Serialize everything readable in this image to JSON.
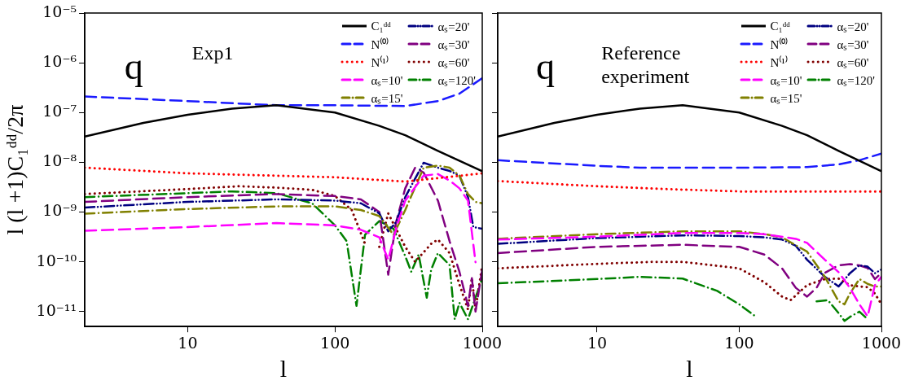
{
  "chart_data": [
    {
      "type": "line",
      "xlabel": "l",
      "ylabel": "l (l +1)C₁ᵈᵈ/2π",
      "annotations": [
        "q",
        "Exp1"
      ],
      "log": "xy",
      "legend": "top right",
      "marker": "none",
      "xlim": [
        2,
        1000
      ],
      "xticks": [
        10,
        100,
        1000
      ],
      "ylim": [
        5e-12,
        1e-05
      ],
      "yticks": [
        {
          "value": 1e-05,
          "label": "10⁻⁵"
        },
        {
          "value": 1e-06,
          "label": "10⁻⁶"
        },
        {
          "value": 1e-07,
          "label": "10⁻⁷"
        },
        {
          "value": 1e-08,
          "label": "10⁻⁸"
        },
        {
          "value": 1e-09,
          "label": "10⁻⁹"
        },
        {
          "value": 1e-10,
          "label": "10⁻¹⁰"
        },
        {
          "value": 1e-11,
          "label": "10⁻¹¹"
        }
      ],
      "series": [
        {
          "name": "C₁ᵈᵈ",
          "color": "#000000",
          "line_style": "solid",
          "x": [
            2,
            5,
            10,
            20,
            40,
            100,
            200,
            300,
            500,
            1000
          ],
          "values": [
            3.3e-08,
            6.2e-08,
            9e-08,
            1.2e-07,
            1.4e-07,
            1e-07,
            5.4e-08,
            3.5e-08,
            1.7e-08,
            6.6e-09
          ]
        },
        {
          "name": "N⁽⁰⁾",
          "color": "#1a1aff",
          "line_style": "dashed",
          "x": [
            2,
            10,
            40,
            100,
            300,
            500,
            700,
            1000
          ],
          "values": [
            2.1e-07,
            1.7e-07,
            1.4e-07,
            1.4e-07,
            1.35e-07,
            1.7e-07,
            2.4e-07,
            4.9e-07
          ]
        },
        {
          "name": "N⁽¹⁾",
          "color": "#ff0000",
          "line_style": "dotted",
          "x": [
            2,
            10,
            100,
            300,
            1000
          ],
          "values": [
            7.8e-09,
            6e-09,
            5e-09,
            4.1e-09,
            6e-09
          ]
        },
        {
          "name": "αₛ=10'",
          "color": "#ff00ff",
          "line_style": "dashed",
          "x": [
            2,
            10,
            40,
            100,
            150,
            200,
            230,
            260,
            300,
            400,
            500,
            600,
            700,
            800,
            900
          ],
          "values": [
            4.2e-10,
            5e-10,
            6e-10,
            5.4e-10,
            4.4e-10,
            3.1e-10,
            1.1e-10,
            4.6e-10,
            1.7e-09,
            5.4e-09,
            5.8e-09,
            4.3e-09,
            3e-09,
            1.7e-09,
            9.8e-11
          ]
        },
        {
          "name": "αₛ=15'",
          "color": "#808000",
          "line_style": "dashdot",
          "x": [
            2,
            10,
            40,
            100,
            150,
            200,
            250,
            300,
            400,
            500,
            600,
            700,
            800,
            900,
            1000
          ],
          "values": [
            9.3e-10,
            1.15e-09,
            1.3e-09,
            1.3e-09,
            1.1e-09,
            8.3e-10,
            3.5e-10,
            1.1e-09,
            7.8e-09,
            8.6e-09,
            7.8e-09,
            5.4e-09,
            2.3e-09,
            1.6e-09,
            1.5e-09
          ]
        },
        {
          "name": "αₛ=20'",
          "color": "#000080",
          "line_style": "dashdotdot",
          "x": [
            2,
            10,
            40,
            100,
            150,
            200,
            230,
            260,
            300,
            400,
            500,
            600,
            700,
            800,
            870,
            1000
          ],
          "values": [
            1.23e-09,
            1.6e-09,
            1.8e-09,
            1.7e-09,
            1.5e-09,
            9.4e-10,
            4.1e-10,
            6.3e-10,
            2e-09,
            9.8e-09,
            7.8e-09,
            6.7e-09,
            5.4e-09,
            2e-09,
            5e-10,
            4.6e-10
          ]
        },
        {
          "name": "αₛ=30'",
          "color": "#800080",
          "line_style": "dashed",
          "x": [
            2,
            10,
            40,
            100,
            150,
            200,
            230,
            260,
            300,
            350,
            400,
            500,
            600,
            700,
            800,
            850,
            900,
            1000
          ],
          "values": [
            1.6e-09,
            2e-09,
            2.3e-09,
            2.1e-09,
            1.8e-09,
            1e-09,
            5.5e-11,
            6.3e-10,
            3e-09,
            7.8e-09,
            6.2e-09,
            1.7e-09,
            2.6e-10,
            6.3e-11,
            1.3e-11,
            4.7e-11,
            1e-11,
            7e-11
          ]
        },
        {
          "name": "αₛ=60'",
          "color": "#800000",
          "line_style": "dotted",
          "x": [
            2,
            10,
            22,
            40,
            70,
            100,
            130,
            160,
            180,
            200,
            230,
            260,
            300,
            350,
            450,
            500,
            600,
            700,
            800,
            850,
            900,
            1000
          ],
          "values": [
            2.3e-09,
            2.9e-09,
            3.3e-09,
            3.1e-09,
            2.8e-09,
            2.1e-09,
            1.1e-09,
            2.3e-10,
            null,
            2e-10,
            9.4e-10,
            4.6e-10,
            2e-10,
            1e-10,
            2.3e-10,
            2.8e-10,
            1.5e-10,
            3.5e-11,
            1.1e-11,
            4.7e-11,
            1.1e-11,
            8.6e-11
          ]
        },
        {
          "name": "αₛ=120'",
          "color": "#008000",
          "line_style": "dashdot",
          "x": [
            2,
            10,
            20,
            40,
            70,
            100,
            120,
            140,
            160,
            200,
            250,
            300,
            330,
            370,
            420,
            450,
            500,
            600,
            650,
            700,
            800,
            1000
          ],
          "values": [
            2e-09,
            2.4e-09,
            2.6e-09,
            2.4e-09,
            1.5e-09,
            5.4e-10,
            2.6e-10,
            1.3e-11,
            3.5e-10,
            6.6e-10,
            4.6e-10,
            1.3e-10,
            6.3e-11,
            1.4e-10,
            1.9e-11,
            7e-11,
            1.5e-10,
            8.6e-11,
            7e-12,
            1.5e-11,
            7e-12,
            4.7e-11
          ]
        }
      ]
    },
    {
      "type": "line",
      "xlabel": "l",
      "annotations": [
        "q",
        "Reference experiment"
      ],
      "log": "xy",
      "legend": "top right",
      "marker": "none",
      "tick_labels": "x",
      "xlim": [
        2,
        1000
      ],
      "xticks": [
        10,
        100,
        1000
      ],
      "ylim": [
        5e-12,
        1e-05
      ],
      "yticks": [
        {
          "value": 1e-05,
          "label": null
        },
        {
          "value": 1e-06,
          "label": null
        },
        {
          "value": 1e-07,
          "label": null
        },
        {
          "value": 1e-08,
          "label": null
        },
        {
          "value": 1e-09,
          "label": null
        },
        {
          "value": 1e-10,
          "label": null
        },
        {
          "value": 1e-11,
          "label": null
        }
      ],
      "series": [
        {
          "name": "C₁ᵈᵈ",
          "color": "#000000",
          "line_style": "solid",
          "x": [
            2,
            5,
            10,
            20,
            40,
            100,
            200,
            300,
            500,
            1000
          ],
          "values": [
            3.3e-08,
            6.2e-08,
            9e-08,
            1.2e-07,
            1.4e-07,
            1e-07,
            5.4e-08,
            3.5e-08,
            1.7e-08,
            6.6e-09
          ]
        },
        {
          "name": "N⁽⁰⁾",
          "color": "#1a1aff",
          "line_style": "dashed",
          "x": [
            2,
            10,
            20,
            100,
            300,
            500,
            700,
            1000
          ],
          "values": [
            1.1e-08,
            8.5e-09,
            7.8e-09,
            7.8e-09,
            8e-09,
            9.1e-09,
            1.1e-08,
            1.5e-08
          ]
        },
        {
          "name": "N⁽¹⁾",
          "color": "#ff0000",
          "line_style": "dotted",
          "x": [
            2,
            10,
            30,
            100,
            1000
          ],
          "values": [
            4.2e-09,
            3.3e-09,
            2.9e-09,
            2.6e-09,
            2.6e-09
          ]
        },
        {
          "name": "αₛ=10'",
          "color": "#ff00ff",
          "line_style": "dashed",
          "x": [
            2,
            10,
            40,
            100,
            150,
            250,
            300,
            400,
            500,
            600,
            700,
            800,
            900,
            1000
          ],
          "values": [
            2.8e-10,
            3.2e-10,
            3.8e-10,
            3.8e-10,
            3.6e-10,
            2.9e-10,
            2.4e-10,
            1.1e-10,
            6.2e-11,
            3e-11,
            1.4e-11,
            8e-12,
            3.4e-11,
            5e-11
          ]
        },
        {
          "name": "αₛ=15'",
          "color": "#808000",
          "line_style": "dashdot",
          "x": [
            2,
            10,
            40,
            100,
            150,
            200,
            300,
            400,
            500,
            550,
            600,
            700,
            800,
            900,
            1000
          ],
          "values": [
            2.9e-10,
            3.6e-10,
            4.1e-10,
            4.1e-10,
            3.6e-10,
            3.1e-10,
            1.6e-10,
            5e-11,
            1.6e-11,
            1.4e-11,
            2.3e-11,
            4.5e-11,
            3.6e-11,
            3.2e-11,
            3.2e-11
          ]
        },
        {
          "name": "αₛ=20'",
          "color": "#000080",
          "line_style": "dashdotdot",
          "x": [
            2,
            10,
            40,
            100,
            150,
            200,
            250,
            300,
            400,
            500,
            600,
            700,
            800,
            900,
            1000
          ],
          "values": [
            2.3e-10,
            3e-10,
            3.4e-10,
            3.3e-10,
            3.1e-10,
            2.8e-10,
            2.1e-10,
            1.1e-10,
            5e-11,
            3.2e-11,
            5.9e-11,
            8.5e-11,
            8e-11,
            5.9e-11,
            7e-11
          ]
        },
        {
          "name": "αₛ=30'",
          "color": "#800080",
          "line_style": "dashed",
          "x": [
            2,
            10,
            40,
            100,
            150,
            200,
            250,
            300,
            350,
            400,
            500,
            600,
            700,
            800,
            900,
            1000
          ],
          "values": [
            1.5e-10,
            2e-10,
            2.2e-10,
            2e-10,
            1.4e-10,
            7.4e-11,
            3e-11,
            2e-11,
            3e-11,
            6e-11,
            8.5e-11,
            9e-11,
            8.5e-11,
            7.5e-11,
            4.5e-11,
            6e-11
          ]
        },
        {
          "name": "αₛ=60'",
          "color": "#800000",
          "line_style": "dotted",
          "x": [
            2,
            10,
            25,
            40,
            100,
            150,
            200,
            230,
            300,
            400,
            500,
            600,
            700,
            800,
            900,
            1000
          ],
          "values": [
            7.4e-11,
            9.1e-11,
            1e-10,
            1e-10,
            7.4e-11,
            3.9e-11,
            2e-11,
            1.7e-11,
            3.4e-11,
            4.5e-11,
            4.6e-11,
            3.4e-11,
            3.2e-11,
            3.1e-11,
            2.3e-11,
            1.4e-11
          ]
        },
        {
          "name": "αₛ=120'",
          "color": "#008000",
          "line_style": "dashdot",
          "x": [
            2,
            10,
            20,
            40,
            70,
            100,
            130,
            200,
            350,
            420,
            500,
            550,
            600,
            700,
            800
          ],
          "values": [
            3.7e-11,
            4.5e-11,
            5e-11,
            4.6e-11,
            2.6e-11,
            1.4e-11,
            8e-12,
            null,
            1.6e-11,
            1.7e-11,
            9.3e-12,
            6.5e-12,
            7.8e-12,
            1e-11,
            7e-12
          ]
        }
      ]
    }
  ]
}
